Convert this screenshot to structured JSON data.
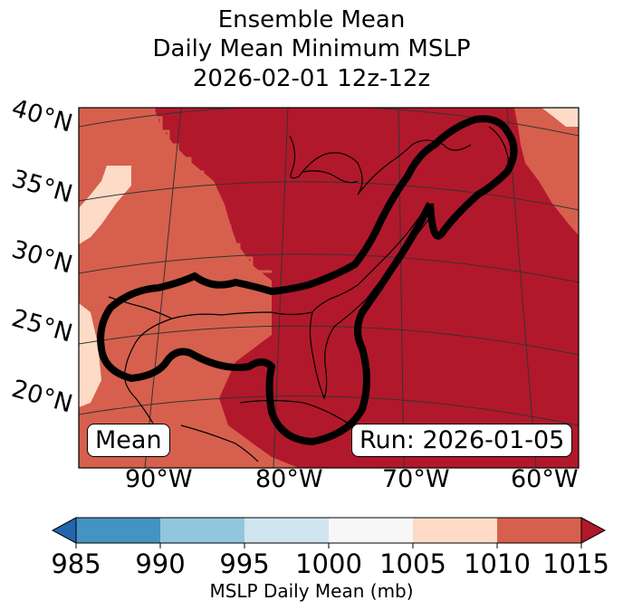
{
  "title": {
    "line1": "Ensemble Mean",
    "line2": "Daily Mean Minimum MSLP",
    "line3": "2026-02-01 12z-12z"
  },
  "map": {
    "lat_labels": [
      "40°N",
      "35°N",
      "30°N",
      "25°N",
      "20°N"
    ],
    "lon_labels": [
      "90°W",
      "80°W",
      "70°W",
      "60°W"
    ],
    "left_box": "Mean",
    "right_box": "Run: 2026-01-05",
    "colors": {
      "lvl_1015": "#b2182b",
      "lvl_1010": "#d6604d",
      "lvl_1005": "#fddbc7",
      "grid": "#333333"
    }
  },
  "colorbar": {
    "ticks": [
      "985",
      "990",
      "995",
      "1000",
      "1005",
      "1010",
      "1015"
    ],
    "label": "MSLP Daily Mean (mb)",
    "colors": [
      "#2166ac",
      "#4393c3",
      "#92c5de",
      "#d1e5f0",
      "#f7f7f7",
      "#fddbc7",
      "#d6604d",
      "#b2182b"
    ]
  }
}
